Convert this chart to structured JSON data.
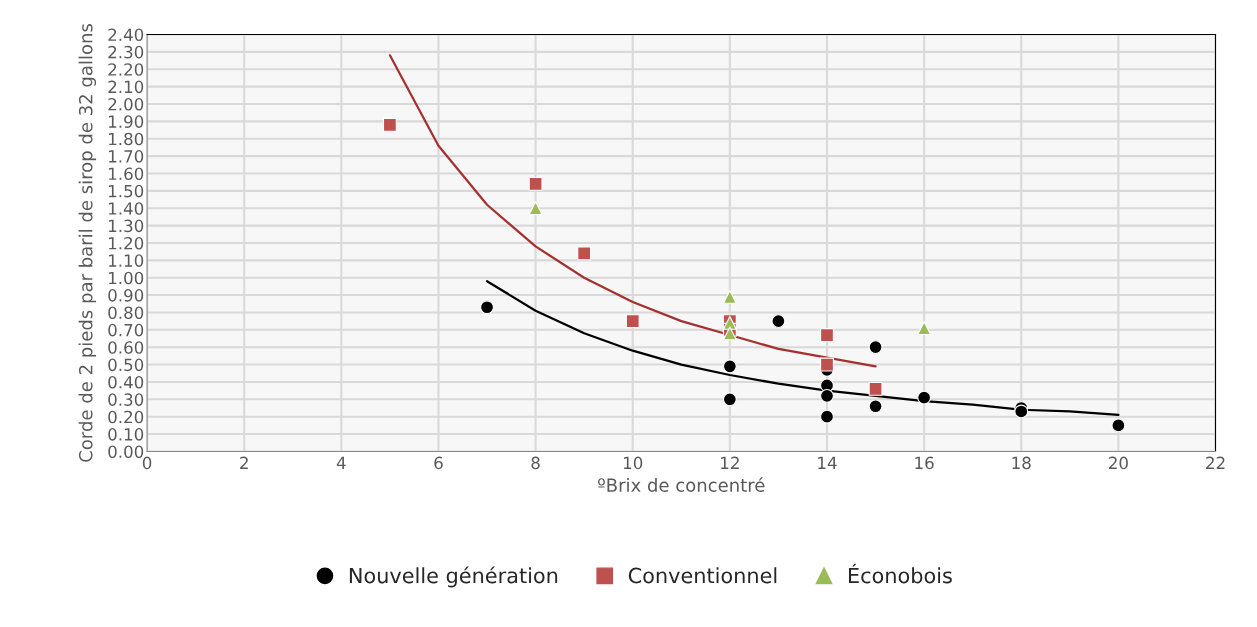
{
  "chart_data": {
    "type": "scatter",
    "xlabel": "ºBrix de concentré",
    "ylabel": "Corde de 2 pieds par baril de sirop de 32 gallons",
    "xlim": [
      0,
      22
    ],
    "xticks": [
      0,
      2,
      4,
      6,
      8,
      10,
      12,
      14,
      16,
      18,
      20,
      22
    ],
    "ylim": [
      0,
      2.4
    ],
    "yticks": [
      {
        "value": 0,
        "label": "0.00"
      },
      {
        "value": 0.1,
        "label": "0.10"
      },
      {
        "value": 0.2,
        "label": "0.20"
      },
      {
        "value": 0.3,
        "label": "0.30"
      },
      {
        "value": 0.4,
        "label": "0.40"
      },
      {
        "value": 0.5,
        "label": "0.50"
      },
      {
        "value": 0.6,
        "label": "0.60"
      },
      {
        "value": 0.7,
        "label": "0.70"
      },
      {
        "value": 0.8,
        "label": "0.80"
      },
      {
        "value": 0.9,
        "label": "0.90"
      },
      {
        "value": 1.0,
        "label": "1.00"
      },
      {
        "value": 1.1,
        "label": "1.10"
      },
      {
        "value": 1.2,
        "label": "1.20"
      },
      {
        "value": 1.3,
        "label": "1.30"
      },
      {
        "value": 1.4,
        "label": "1.40"
      },
      {
        "value": 1.5,
        "label": "1.50"
      },
      {
        "value": 1.6,
        "label": "1.60"
      },
      {
        "value": 1.7,
        "label": "1.70"
      },
      {
        "value": 1.8,
        "label": "1.80"
      },
      {
        "value": 1.9,
        "label": "1.90"
      },
      {
        "value": 2.0,
        "label": "2.00"
      },
      {
        "value": 2.1,
        "label": "2.10"
      },
      {
        "value": 2.2,
        "label": "2.20"
      },
      {
        "value": 2.3,
        "label": "2.30"
      },
      {
        "value": 2.4,
        "label": "2.40"
      }
    ],
    "grid": true,
    "legend": "bottom",
    "series": [
      {
        "type": "line",
        "marker": "none",
        "color": "#000000",
        "x": [
          7,
          8,
          9,
          10,
          11,
          12,
          13,
          14,
          15,
          16,
          17,
          18,
          19,
          20
        ],
        "values": [
          0.98,
          0.81,
          0.68,
          0.58,
          0.5,
          0.44,
          0.39,
          0.35,
          0.32,
          0.29,
          0.27,
          0.24,
          0.23,
          0.21
        ]
      },
      {
        "type": "line",
        "marker": "none",
        "color": "#a5302e",
        "x": [
          5,
          6,
          7,
          8,
          9,
          10,
          11,
          12,
          13,
          14,
          15
        ],
        "values": [
          2.28,
          1.76,
          1.42,
          1.18,
          1.0,
          0.86,
          0.75,
          0.67,
          0.59,
          0.54,
          0.49
        ]
      },
      {
        "name": "Nouvelle génération",
        "marker": "circle",
        "color": "#000000",
        "x": [
          7,
          12,
          12,
          13,
          14,
          14,
          14,
          14,
          15,
          15,
          16,
          18,
          18,
          20
        ],
        "values": [
          0.83,
          0.49,
          0.3,
          0.75,
          0.47,
          0.38,
          0.32,
          0.2,
          0.6,
          0.26,
          0.31,
          0.25,
          0.23,
          0.15
        ]
      },
      {
        "name": "Conventionnel",
        "marker": "square",
        "color": "#c0504d",
        "x": [
          5,
          8,
          9,
          10,
          12,
          12,
          14,
          14,
          15
        ],
        "values": [
          1.88,
          1.54,
          1.14,
          0.75,
          0.75,
          0.7,
          0.67,
          0.5,
          0.36
        ]
      },
      {
        "name": "Éconobois",
        "marker": "triangle",
        "color": "#9bbb59",
        "x": [
          8,
          12,
          12,
          12,
          16
        ],
        "values": [
          1.4,
          0.89,
          0.74,
          0.68,
          0.71
        ]
      }
    ]
  }
}
